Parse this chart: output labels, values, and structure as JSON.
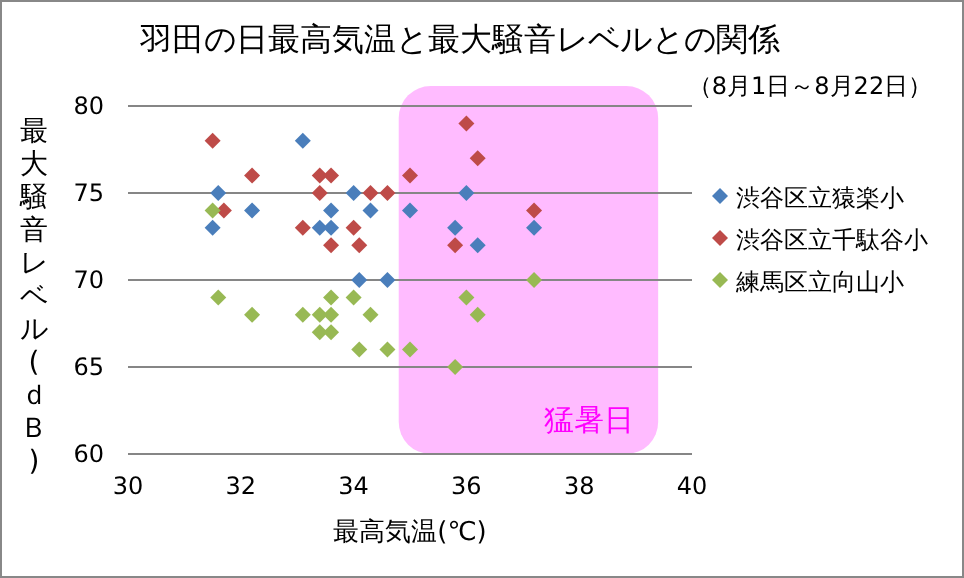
{
  "chart_data": {
    "type": "scatter",
    "title": "羽田の日最高気温と最大騒音レベルとの関係",
    "subtitle": "（8月1日～8月22日）",
    "xlabel": "最高気温(℃)",
    "ylabel": "最大騒音レベル(ｄＢ)",
    "xlim": [
      30,
      40
    ],
    "xticks": [
      30,
      32,
      34,
      36,
      38,
      40
    ],
    "ylim": [
      60,
      80
    ],
    "yticks": [
      60,
      65,
      70,
      75,
      80
    ],
    "grid": "y",
    "legend": "right",
    "marker": "diamond",
    "bands": [
      {
        "axis": "x",
        "from": 34.8,
        "to": 39.4,
        "label": "猛暑日",
        "color": "#ffbbff"
      }
    ],
    "series": [
      {
        "name": "渋谷区立猿楽小",
        "color": "#4a7ebb",
        "x": [
          33.1,
          31.6,
          32.2,
          33.6,
          34.3,
          34.0,
          31.5,
          33.4,
          33.6,
          34.1,
          34.6,
          36.0,
          35.0,
          35.8,
          36.2,
          37.2
        ],
        "values": [
          78,
          75,
          74,
          74,
          74,
          75,
          73,
          73,
          73,
          70,
          70,
          75,
          74,
          73,
          72,
          73
        ]
      },
      {
        "name": "渋谷区立千駄谷小",
        "color": "#be4b48",
        "x": [
          31.5,
          32.2,
          33.4,
          33.6,
          33.4,
          34.3,
          34.6,
          31.7,
          33.1,
          34.0,
          33.6,
          34.1,
          36.0,
          36.2,
          35.0,
          37.2,
          35.8
        ],
        "values": [
          78,
          76,
          76,
          76,
          75,
          75,
          75,
          74,
          73,
          73,
          72,
          72,
          79,
          77,
          76,
          74,
          72
        ]
      },
      {
        "name": "練馬区立向山小",
        "color": "#98b954",
        "x": [
          31.5,
          31.6,
          32.2,
          33.1,
          33.4,
          33.6,
          33.6,
          34.0,
          34.3,
          33.4,
          33.6,
          34.1,
          34.6,
          35.0,
          35.8,
          36.0,
          36.2,
          37.2
        ],
        "values": [
          74,
          69,
          68,
          68,
          68,
          68,
          69,
          69,
          68,
          67,
          67,
          66,
          66,
          66,
          65,
          69,
          68,
          70
        ]
      }
    ]
  }
}
